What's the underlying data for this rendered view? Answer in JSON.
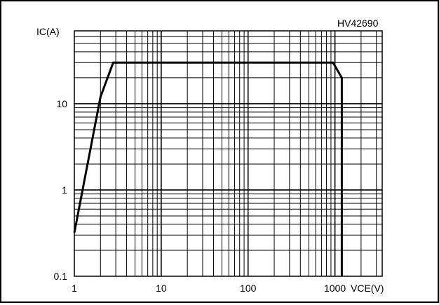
{
  "figure_id": "HV42690",
  "chart_data": {
    "type": "line",
    "title": "",
    "figure_code": "HV42690",
    "xlabel": "VCE(V)",
    "ylabel": "IC(A)",
    "x_scale": "log",
    "y_scale": "log",
    "xlim": [
      1,
      3500
    ],
    "ylim": [
      0.1,
      70
    ],
    "x_ticks": [
      1,
      10,
      100,
      1000
    ],
    "x_tick_labels": [
      "1",
      "10",
      "100",
      "1000"
    ],
    "y_ticks": [
      0.1,
      1,
      10
    ],
    "y_tick_labels": [
      "0.1",
      "1",
      "10"
    ],
    "grid": true,
    "series": [
      {
        "x": [
          1,
          2,
          2.8,
          950,
          1200,
          1200
        ],
        "y": [
          0.32,
          12,
          30,
          30,
          20,
          0.1
        ]
      }
    ]
  }
}
